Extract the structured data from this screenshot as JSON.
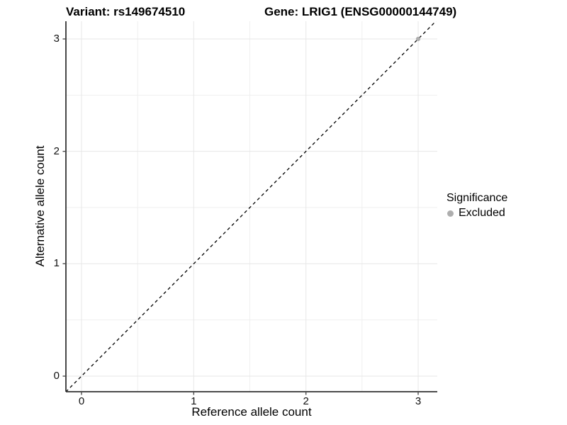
{
  "chart_data": {
    "type": "scatter",
    "title_left": "Variant: rs149674510",
    "title_right": "Gene: LRIG1 (ENSG00000144749)",
    "xlabel": "Reference allele count",
    "ylabel": "Alternative allele count",
    "xlim": [
      -0.14,
      3.17
    ],
    "ylim": [
      -0.14,
      3.17
    ],
    "x_ticks": [
      0,
      1,
      2,
      3
    ],
    "y_ticks": [
      0,
      1,
      2,
      3
    ],
    "x_minor_ticks": [
      0.5,
      1.5,
      2.5
    ],
    "y_minor_ticks": [
      0.5,
      1.5,
      2.5
    ],
    "grid": true,
    "abline": {
      "slope": 1,
      "intercept": 0,
      "style": "dashed"
    },
    "points": [
      {
        "x": 3,
        "y": 3,
        "series": "Excluded"
      }
    ],
    "legend": {
      "position": "right",
      "title": "Significance",
      "items": [
        {
          "label": "Excluded",
          "color": "#aeaeae"
        }
      ]
    },
    "colors": {
      "background": "#ffffff",
      "grid_major": "#e7e7e7",
      "grid_minor": "#efefef",
      "axis_line": "#333333",
      "tick_mark": "#4d4d4d",
      "text": "#000000",
      "abline": "#000000",
      "excluded_point": "#aeaeae"
    }
  }
}
